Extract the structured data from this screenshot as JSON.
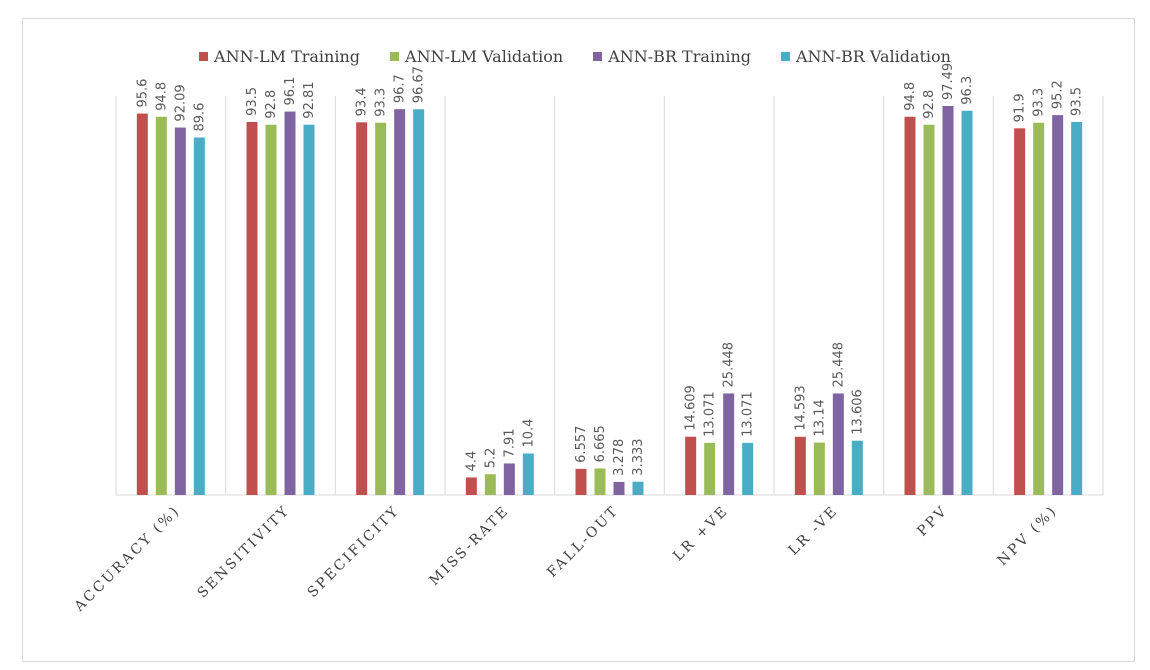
{
  "chart_data": {
    "type": "bar",
    "categories": [
      "ACCURACY (%)",
      "SENSITIVITY",
      "SPECIFICITY",
      "MISS-RATE",
      "FALL-OUT",
      "LR +VE",
      "LR -VE",
      "PPV",
      "NPV (%)"
    ],
    "series": [
      {
        "name": "ANN-LM Training",
        "color": "#c0504d",
        "values": [
          95.6,
          93.5,
          93.4,
          4.4,
          6.557,
          14.609,
          14.593,
          94.8,
          91.9
        ],
        "labels": [
          "95.6",
          "93.5",
          "93.4",
          "4.4",
          "6.557",
          "14.609",
          "14.593",
          "94.8",
          "91.9"
        ]
      },
      {
        "name": "ANN-LM Validation",
        "color": "#9bbb59",
        "values": [
          94.8,
          92.8,
          93.3,
          5.2,
          6.665,
          13.071,
          13.14,
          92.8,
          93.3
        ],
        "labels": [
          "94.8",
          "92.8",
          "93.3",
          "5.2",
          "6.665",
          "13.071",
          "13.14",
          "92.8",
          "93.3"
        ]
      },
      {
        "name": "ANN-BR Training",
        "color": "#8064a2",
        "values": [
          92.09,
          96.1,
          96.7,
          7.91,
          3.278,
          25.448,
          25.448,
          97.49,
          95.2
        ],
        "labels": [
          "92.09",
          "96.1",
          "96.7",
          "7.91",
          "3.278",
          "25.448",
          "25.448",
          "97.49",
          "95.2"
        ]
      },
      {
        "name": "ANN-BR Validation",
        "color": "#4bacc6",
        "values": [
          89.6,
          92.81,
          96.67,
          10.4,
          3.333,
          13.071,
          13.606,
          96.3,
          93.5
        ],
        "labels": [
          "89.6",
          "92.81",
          "96.67",
          "10.4",
          "3.333",
          "13.071",
          "13.606",
          "96.3",
          "93.5"
        ]
      }
    ],
    "title": "",
    "xlabel": "",
    "ylabel": "",
    "ylim": [
      0,
      100
    ],
    "grid": "vertical category separators",
    "legend": "top"
  }
}
